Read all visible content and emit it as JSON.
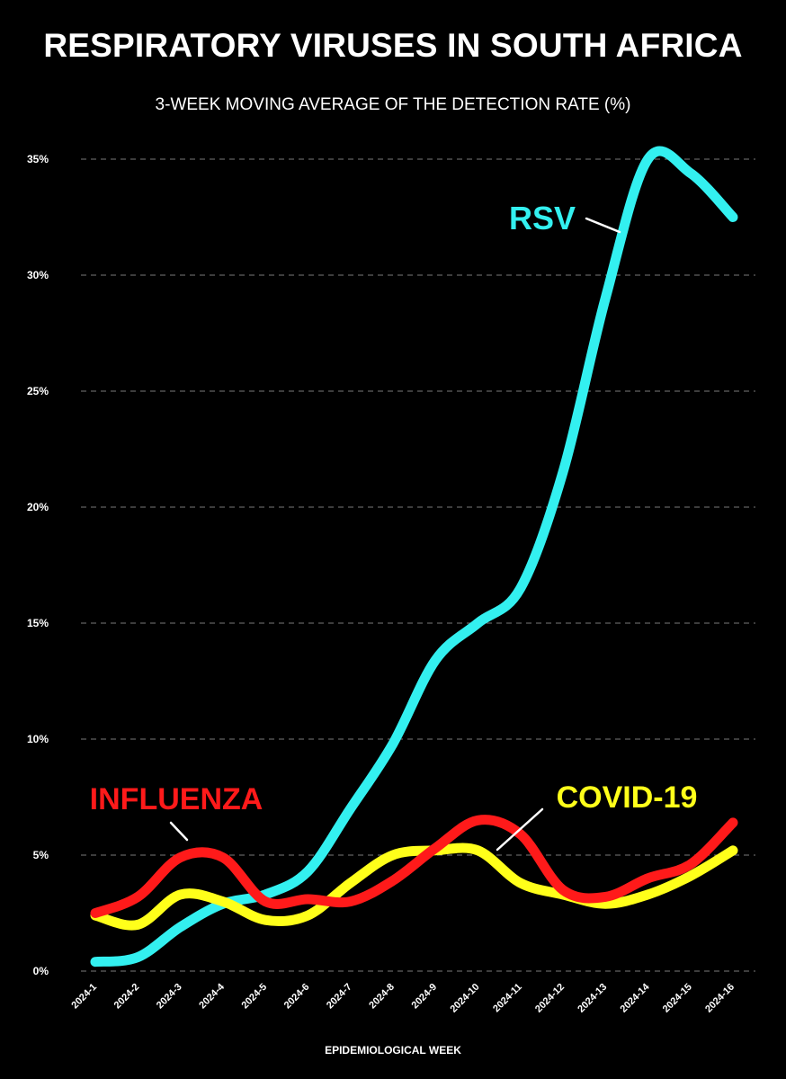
{
  "chart_data": {
    "type": "line",
    "title": "RESPIRATORY VIRUSES IN SOUTH AFRICA",
    "subtitle": "3-WEEK MOVING AVERAGE OF THE DETECTION RATE (%)",
    "xlabel": "EPIDEMIOLOGICAL WEEK",
    "ylabel": "",
    "categories": [
      "2024-1",
      "2024-2",
      "2024-3",
      "2024-4",
      "2024-5",
      "2024-6",
      "2024-7",
      "2024-8",
      "2024-9",
      "2024-10",
      "2024-11",
      "2024-12",
      "2024-13",
      "2024-14",
      "2024-15",
      "2024-16"
    ],
    "ylim": [
      0,
      35
    ],
    "yticks": [
      0,
      5,
      10,
      15,
      20,
      25,
      30,
      35
    ],
    "ytick_labels": [
      "0%",
      "5%",
      "10%",
      "15%",
      "20%",
      "25%",
      "30%",
      "35%"
    ],
    "grid": "horizontal dashed",
    "legend": "inline labels",
    "series": [
      {
        "name": "RSV",
        "color": "#33f0f0",
        "values": [
          0.4,
          0.6,
          1.9,
          2.9,
          3.3,
          4.3,
          7.0,
          9.8,
          13.4,
          15.0,
          16.5,
          21.5,
          29.0,
          35.0,
          34.4,
          32.5
        ]
      },
      {
        "name": "INFLUENZA",
        "color": "#ff1a1a",
        "values": [
          2.5,
          3.2,
          4.9,
          4.9,
          3.0,
          3.1,
          3.0,
          3.9,
          5.3,
          6.5,
          5.9,
          3.5,
          3.2,
          4.0,
          4.6,
          6.4
        ]
      },
      {
        "name": "COVID-19",
        "color": "#ffff1a",
        "values": [
          2.4,
          2.0,
          3.3,
          3.0,
          2.2,
          2.4,
          3.8,
          5.0,
          5.2,
          5.2,
          3.8,
          3.3,
          2.9,
          3.3,
          4.1,
          5.2
        ]
      }
    ]
  }
}
